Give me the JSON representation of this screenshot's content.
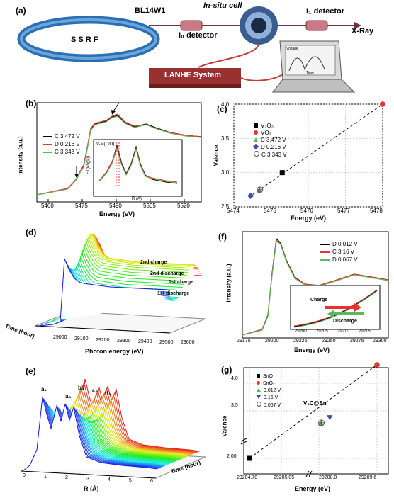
{
  "panels": {
    "a": {
      "label": "(a)",
      "beamline": "BL14W1",
      "ring": "S S R F",
      "cell": "In-situ cell",
      "i0": "I₀ detector",
      "i1": "I₁ detector",
      "xray": "X-Ray",
      "system": "LANHE System",
      "screen_axis": "Voltage",
      "screen_time": "Time"
    },
    "b": {
      "label": "(b)",
      "ylabel": "Intensity (a.u.)",
      "xlabel": "Energy (eV)",
      "xticks": [
        "5460",
        "5475",
        "5490",
        "5505",
        "5520"
      ],
      "legend": [
        "C 3.472 V",
        "D 0.216 V",
        "C 3.343 V"
      ],
      "colors": [
        "#000000",
        "#e8322c",
        "#5cb85c"
      ],
      "inset": {
        "ylabel": "FT(k³χ(k))",
        "xlabel": "R (Å)",
        "xticks": [
          "0",
          "1",
          "2",
          "3",
          "4"
        ],
        "annotation": "V-M(C/O)"
      }
    },
    "c": {
      "label": "(c)",
      "ylabel": "Valence",
      "xlabel": "Energy (eV)",
      "xticks": [
        "5474",
        "5475",
        "5476",
        "5477",
        "5478"
      ],
      "yticks": [
        "2.5",
        "3.0",
        "3.5",
        "4.0"
      ],
      "legend": [
        "V₂O₃",
        "VO₂",
        "C 3.472 V",
        "D 0.216 V",
        "C 3.343 V"
      ]
    },
    "d": {
      "label": "(d)",
      "xlabel": "Photon energy (eV)",
      "ylabel": "Time (hour)",
      "xticks": [
        "29000",
        "29100",
        "29200",
        "29300",
        "29400",
        "29500",
        "29600"
      ],
      "annotations": [
        "2nd charge",
        "2nd discharge",
        "1st charge",
        "1st discharge"
      ]
    },
    "e": {
      "label": "(e)",
      "xlabel": "R (Å)",
      "ylabel": "Time (hour)",
      "xticks": [
        "0",
        "1",
        "2",
        "3",
        "4",
        "5",
        "6"
      ],
      "peaks": [
        "a₁",
        "a₄",
        "b₃",
        "c₃",
        "d₃"
      ]
    },
    "f": {
      "label": "(f)",
      "ylabel": "Intensity (a.u.)",
      "xlabel": "Energy (eV)",
      "xticks": [
        "29175",
        "29200",
        "29225",
        "29250",
        "29275",
        "29300"
      ],
      "legend": [
        "D 0.012 V",
        "C 3.16 V",
        "D 0.067 V"
      ],
      "colors": [
        "#000000",
        "#e8322c",
        "#5cb85c"
      ],
      "inset": {
        "charge": "Charge",
        "discharge": "Discharge",
        "xticks": [
          "29200",
          "29205",
          "29210",
          "29215"
        ]
      }
    },
    "g": {
      "label": "(g)",
      "ylabel": "Valence",
      "xlabel": "Energy (eV)",
      "xticks": [
        "29204.70",
        "29205.05",
        "29208.0",
        "29209.6"
      ],
      "yticks": [
        "2.00",
        "3.5",
        "4.0"
      ],
      "legend": [
        "SnO",
        "SnO₂",
        "0.012 V",
        "3.16 V",
        "0.067 V"
      ],
      "annotation": "V₂C@Sn"
    }
  },
  "chart_data": [
    {
      "type": "scatter",
      "panel": "c",
      "xlabel": "Energy (eV)",
      "ylabel": "Valence",
      "xlim": [
        5474,
        5478
      ],
      "ylim": [
        2.5,
        4.0
      ],
      "series": [
        {
          "name": "V₂O₃",
          "x": [
            5475.3
          ],
          "y": [
            3.0
          ],
          "color": "#000000"
        },
        {
          "name": "VO₂",
          "x": [
            5478.0
          ],
          "y": [
            4.0
          ],
          "color": "#e8322c"
        },
        {
          "name": "C 3.472 V",
          "x": [
            5474.68
          ],
          "y": [
            2.74
          ],
          "color": "#5cb85c"
        },
        {
          "name": "D 0.216 V",
          "x": [
            5474.45
          ],
          "y": [
            2.66
          ],
          "color": "#3a4fa8"
        },
        {
          "name": "C 3.343 V",
          "x": [
            5474.7
          ],
          "y": [
            2.75
          ],
          "color": "#555555"
        }
      ]
    },
    {
      "type": "scatter",
      "panel": "g",
      "xlabel": "Energy (eV)",
      "ylabel": "Valence",
      "series": [
        {
          "name": "SnO",
          "x": [
            29204.7
          ],
          "y": [
            2.0
          ],
          "color": "#000000"
        },
        {
          "name": "SnO₂",
          "x": [
            29209.6
          ],
          "y": [
            4.0
          ],
          "color": "#e8322c"
        },
        {
          "name": "0.012 V",
          "x": [
            29208.05
          ],
          "y": [
            3.36
          ],
          "color": "#5cb85c"
        },
        {
          "name": "3.16 V",
          "x": [
            29208.3
          ],
          "y": [
            3.43
          ],
          "color": "#3a4fa8"
        },
        {
          "name": "0.067 V",
          "x": [
            29208.07
          ],
          "y": [
            3.37
          ],
          "color": "#555555"
        }
      ]
    }
  ]
}
